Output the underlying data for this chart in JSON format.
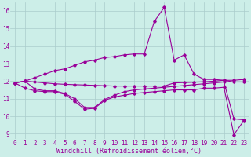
{
  "xlabel": "Windchill (Refroidissement éolien,°C)",
  "background_color": "#cceee8",
  "grid_color": "#aacccc",
  "line_color": "#990099",
  "xlim": [
    -0.5,
    23.5
  ],
  "ylim": [
    8.7,
    16.5
  ],
  "yticks": [
    9,
    10,
    11,
    12,
    13,
    14,
    15,
    16
  ],
  "xticks": [
    0,
    1,
    2,
    3,
    4,
    5,
    6,
    7,
    8,
    9,
    10,
    11,
    12,
    13,
    14,
    15,
    16,
    17,
    18,
    19,
    20,
    21,
    22,
    23
  ],
  "line_spike_x": [
    0,
    1,
    2,
    3,
    4,
    5,
    6,
    7,
    8,
    9,
    10,
    11,
    12,
    13,
    14,
    15,
    16,
    17,
    18,
    19,
    20,
    21,
    22,
    23
  ],
  "line_spike_y": [
    11.9,
    12.0,
    12.2,
    12.4,
    12.6,
    12.7,
    12.9,
    13.1,
    13.2,
    13.35,
    13.4,
    13.5,
    13.55,
    13.55,
    15.4,
    16.2,
    13.2,
    13.5,
    12.4,
    12.1,
    12.1,
    12.05,
    11.95,
    11.95
  ],
  "line_flat_x": [
    0,
    1,
    2,
    3,
    4,
    5,
    6,
    7,
    8,
    9,
    10,
    11,
    12,
    13,
    14,
    15,
    16,
    17,
    18,
    19,
    20,
    21,
    22,
    23
  ],
  "line_flat_y": [
    11.9,
    12.0,
    11.95,
    11.9,
    11.85,
    11.82,
    11.8,
    11.78,
    11.76,
    11.74,
    11.72,
    11.72,
    11.72,
    11.72,
    11.72,
    11.72,
    11.9,
    11.92,
    11.94,
    11.96,
    12.0,
    12.05,
    12.05,
    12.1
  ],
  "line_dip1_x": [
    0,
    1,
    2,
    3,
    4,
    5,
    6,
    7,
    8,
    9,
    10,
    11,
    12,
    13,
    14,
    15,
    16,
    17,
    18,
    19,
    20,
    21,
    22,
    23
  ],
  "line_dip1_y": [
    11.9,
    12.0,
    11.55,
    11.45,
    11.45,
    11.3,
    11.0,
    10.5,
    10.5,
    10.95,
    11.2,
    11.4,
    11.5,
    11.55,
    11.6,
    11.65,
    11.7,
    11.75,
    11.8,
    11.85,
    11.9,
    11.95,
    9.85,
    9.8
  ],
  "line_dip2_x": [
    0,
    1,
    2,
    3,
    4,
    5,
    6,
    7,
    8,
    9,
    10,
    11,
    12,
    13,
    14,
    15,
    16,
    17,
    18,
    19,
    20,
    21,
    22,
    23
  ],
  "line_dip2_y": [
    11.9,
    11.6,
    11.45,
    11.4,
    11.4,
    11.25,
    10.85,
    10.4,
    10.45,
    10.9,
    11.1,
    11.2,
    11.3,
    11.35,
    11.4,
    11.45,
    11.5,
    11.5,
    11.5,
    11.6,
    11.6,
    11.65,
    8.95,
    9.75
  ],
  "fontsize_label": 6,
  "fontsize_tick": 5.5,
  "marker": "D",
  "markersize": 1.8
}
